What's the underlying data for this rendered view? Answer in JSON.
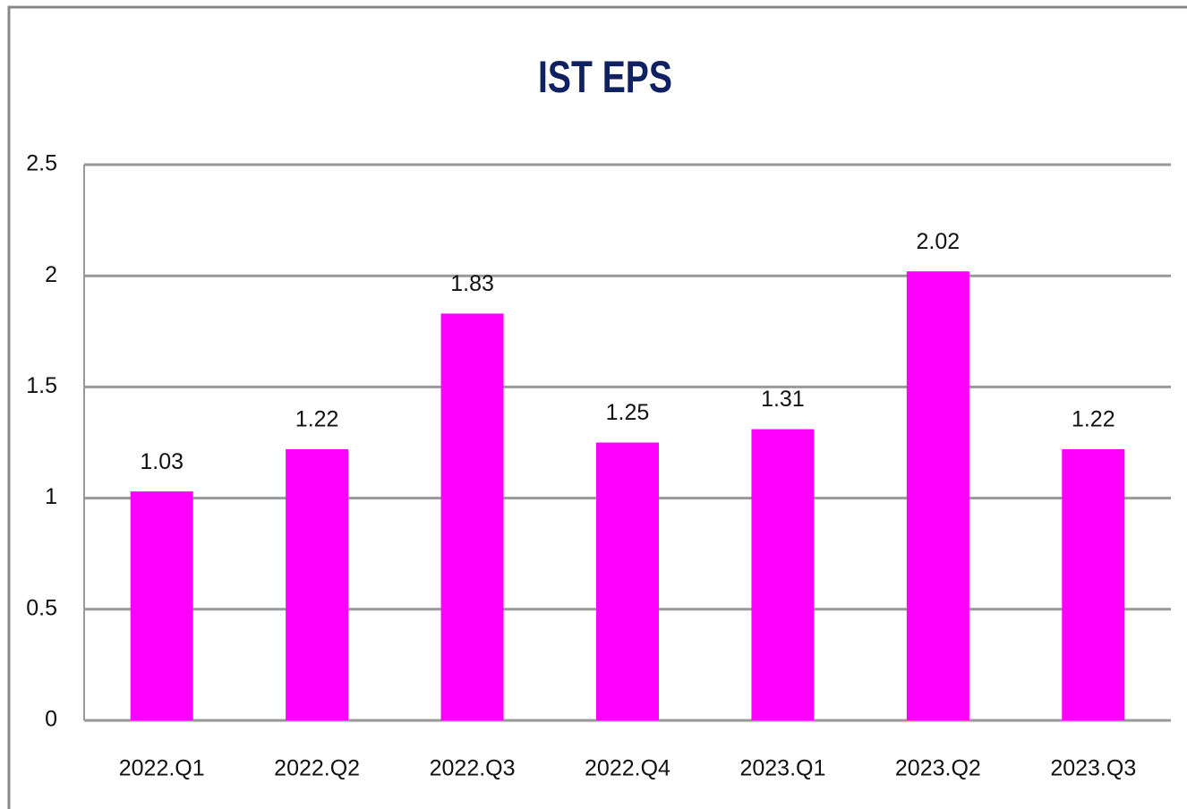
{
  "chart_data": {
    "type": "bar",
    "title": "IST EPS",
    "categories": [
      "2022.Q1",
      "2022.Q2",
      "2022.Q3",
      "2022.Q4",
      "2023.Q1",
      "2023.Q2",
      "2023.Q3"
    ],
    "values": [
      1.03,
      1.22,
      1.83,
      1.25,
      1.31,
      2.02,
      1.22
    ],
    "color": "#ff00ff",
    "ylim": [
      0,
      2.5
    ],
    "yticks": [
      0,
      0.5,
      1,
      1.5,
      2,
      2.5
    ],
    "grid": true
  }
}
